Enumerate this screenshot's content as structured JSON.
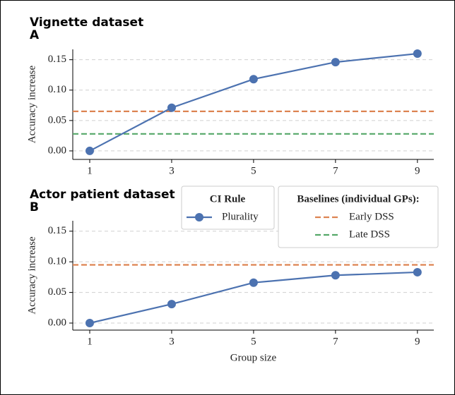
{
  "chart_data": [
    {
      "type": "line",
      "title": "Vignette dataset",
      "panel": "A",
      "ylabel": "Accuracy increase",
      "x": [
        1,
        3,
        5,
        7,
        9
      ],
      "series": [
        {
          "name": "Plurality",
          "color": "#4c72b0",
          "values": [
            0,
            0.071,
            0.118,
            0.146,
            0.16
          ]
        }
      ],
      "baselines": [
        {
          "name": "Early DSS",
          "color": "#dd8452",
          "value": 0.065
        },
        {
          "name": "Late DSS",
          "color": "#55a868",
          "value": 0.028
        }
      ],
      "legend_title": "CI Rule",
      "baselines_title": "Baselines (individual GPs):",
      "xlim": [
        0.586,
        9.4
      ],
      "xticks": [
        1,
        3,
        5,
        7,
        9
      ],
      "ylim": [
        -0.014,
        0.167
      ],
      "yticks": [
        {
          "value": 0,
          "label": "0.00"
        },
        {
          "value": 0.05,
          "label": "0.05"
        },
        {
          "value": 0.1,
          "label": "0.10"
        },
        {
          "value": 0.15,
          "label": "0.15"
        }
      ],
      "grid": true
    },
    {
      "type": "line",
      "title": "Actor patient dataset",
      "panel": "B",
      "ylabel": "Accuracy increase",
      "xlabel": "Group size",
      "x": [
        1,
        3,
        5,
        7,
        9
      ],
      "series": [
        {
          "color": "#4c72b0",
          "values": [
            0,
            0.031,
            0.066,
            0.078,
            0.083
          ]
        }
      ],
      "baselines": [
        {
          "color": "#dd8452",
          "value": 0.095
        }
      ],
      "xlim": [
        0.586,
        9.4
      ],
      "xticks": [
        1,
        3,
        5,
        7,
        9
      ],
      "ylim": [
        -0.0115,
        0.167
      ],
      "yticks": [
        {
          "value": 0,
          "label": "0.00"
        },
        {
          "value": 0.05,
          "label": "0.05"
        },
        {
          "value": 0.1,
          "label": "0.10"
        },
        {
          "value": 0.15,
          "label": "0.15"
        }
      ],
      "grid": true
    }
  ]
}
